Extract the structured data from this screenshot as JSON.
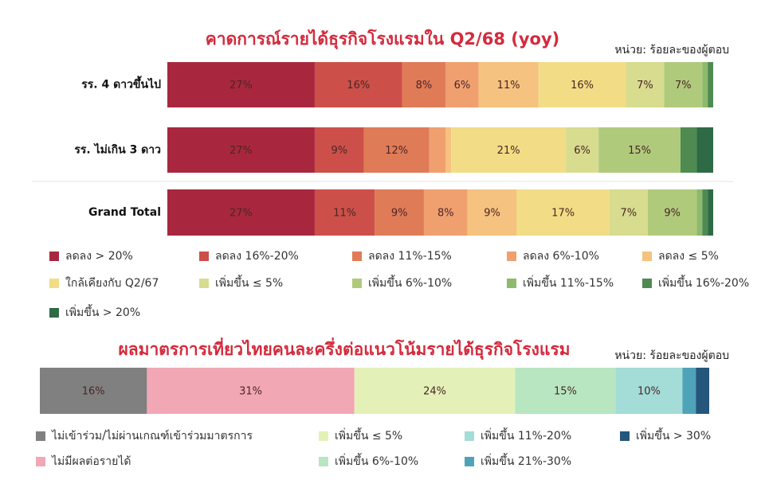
{
  "chart_data": [
    {
      "type": "stacked-bar",
      "orientation": "horizontal",
      "title": "คาดการณ์รายได้ธุรกิจโรงแรมใน Q2/68 (yoy)",
      "annotation": "หน่วย: ร้อยละของผู้ตอบ",
      "categories": [
        "รร. 4 ดาวขึ้นไป",
        "รร. ไม่เกิน 3 ดาว",
        "Grand Total"
      ],
      "series": [
        {
          "name": "ลดลง > 20%",
          "color": "#a8273f",
          "values": [
            27,
            27,
            27
          ],
          "value_labels": [
            "27%",
            "27%",
            "27%"
          ]
        },
        {
          "name": "ลดลง 16%-20%",
          "color": "#cc5049",
          "values": [
            16,
            9,
            11
          ],
          "value_labels": [
            "16%",
            "9%",
            "11%"
          ]
        },
        {
          "name": "ลดลง 11%-15%",
          "color": "#e07b57",
          "values": [
            8,
            12,
            9
          ],
          "value_labels": [
            "8%",
            "12%",
            "9%"
          ]
        },
        {
          "name": "ลดลง 6%-10%",
          "color": "#f0a06f",
          "values": [
            6,
            3,
            8
          ],
          "value_labels": [
            "6%",
            null,
            "8%"
          ]
        },
        {
          "name": "ลดลง ≤ 5%",
          "color": "#f6c27f",
          "values": [
            11,
            1,
            9
          ],
          "value_labels": [
            "11%",
            null,
            "9%"
          ]
        },
        {
          "name": "ใกล้เคียงกับ Q2/67",
          "color": "#f3dc86",
          "values": [
            16,
            21,
            17
          ],
          "value_labels": [
            "16%",
            "21%",
            "17%"
          ]
        },
        {
          "name": "เพิ่มขึ้น ≤ 5%",
          "color": "#d7dc8e",
          "values": [
            7,
            6,
            7
          ],
          "value_labels": [
            "7%",
            "6%",
            "7%"
          ]
        },
        {
          "name": "เพิ่มขึ้น 6%-10%",
          "color": "#b0ca7c",
          "values": [
            7,
            15,
            9
          ],
          "value_labels": [
            "7%",
            "15%",
            "9%"
          ]
        },
        {
          "name": "เพิ่มขึ้น 11%-15%",
          "color": "#8dba6c",
          "values": [
            1,
            0,
            1
          ],
          "value_labels": [
            null,
            null,
            null
          ]
        },
        {
          "name": "เพิ่มขึ้น 16%-20%",
          "color": "#4f8b50",
          "values": [
            1,
            3,
            1
          ],
          "value_labels": [
            null,
            null,
            null
          ]
        },
        {
          "name": "เพิ่มขึ้น > 20%",
          "color": "#2f6a46",
          "values": [
            0,
            3,
            1
          ],
          "value_labels": [
            null,
            null,
            null
          ]
        }
      ]
    },
    {
      "type": "stacked-bar",
      "orientation": "horizontal",
      "title": "ผลมาตรการเที่ยวไทยคนละครึ่งต่อแนวโน้มรายได้ธุรกิจโรงแรม",
      "annotation": "หน่วย: ร้อยละของผู้ตอบ",
      "categories": [
        null
      ],
      "series": [
        {
          "name": "ไม่เข้าร่วม/ไม่ผ่านเกณฑ์เข้าร่วมมาตรการ",
          "color": "#808080",
          "values": [
            16
          ],
          "value_labels": [
            "16%"
          ]
        },
        {
          "name": "ไม่มีผลต่อรายได้",
          "color": "#f2a7b5",
          "values": [
            31
          ],
          "value_labels": [
            "31%"
          ]
        },
        {
          "name": "เพิ่มขึ้น ≤ 5%",
          "color": "#e3f1b8",
          "values": [
            24
          ],
          "value_labels": [
            "24%"
          ]
        },
        {
          "name": "เพิ่มขึ้น 6%-10%",
          "color": "#b7e6c1",
          "values": [
            15
          ],
          "value_labels": [
            "15%"
          ]
        },
        {
          "name": "เพิ่มขึ้น 11%-20%",
          "color": "#a4dcd7",
          "values": [
            10
          ],
          "value_labels": [
            "10%"
          ]
        },
        {
          "name": "เพิ่มขึ้น 21%-30%",
          "color": "#4fa3b9",
          "values": [
            2
          ],
          "value_labels": [
            null
          ]
        },
        {
          "name": "เพิ่มขึ้น > 30%",
          "color": "#25567b",
          "values": [
            2
          ],
          "value_labels": [
            null
          ]
        }
      ]
    }
  ]
}
